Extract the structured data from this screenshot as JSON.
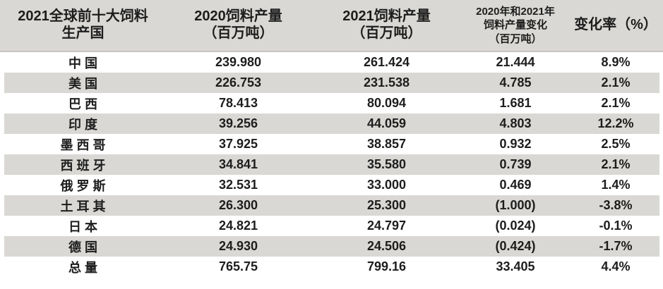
{
  "theme": {
    "background": "#ffffff",
    "header_bg": "#d9d8d4",
    "stripe_color": "#d9d8d4",
    "text_color": "#1d1d1d",
    "header_border": "#c6c5c1"
  },
  "table": {
    "columns": [
      {
        "id": "country",
        "lines": [
          "2021全球前十大饲料",
          "生产国"
        ],
        "small": false
      },
      {
        "id": "prod2020",
        "lines": [
          "2020饲料产量",
          "（百万吨）"
        ],
        "small": false
      },
      {
        "id": "prod2021",
        "lines": [
          "2021饲料产量",
          "（百万吨）"
        ],
        "small": false
      },
      {
        "id": "change",
        "lines": [
          "2020年和2021年",
          "饲料产量变化",
          "（百万吨）"
        ],
        "small": true
      },
      {
        "id": "rate",
        "lines": [
          "变化率（%）"
        ],
        "small": false
      }
    ],
    "rows": [
      {
        "country": "中 国",
        "y2020": "239.980",
        "y2021": "261.424",
        "change": "21.444",
        "rate": "8.9%"
      },
      {
        "country": "美 国",
        "y2020": "226.753",
        "y2021": "231.538",
        "change": "4.785",
        "rate": "2.1%"
      },
      {
        "country": "巴 西",
        "y2020": "78.413",
        "y2021": "80.094",
        "change": "1.681",
        "rate": "2.1%"
      },
      {
        "country": "印 度",
        "y2020": "39.256",
        "y2021": "44.059",
        "change": "4.803",
        "rate": "12.2%"
      },
      {
        "country": "墨 西 哥",
        "y2020": "37.925",
        "y2021": "38.857",
        "change": "0.932",
        "rate": "2.5%"
      },
      {
        "country": "西 班 牙",
        "y2020": "34.841",
        "y2021": "35.580",
        "change": "0.739",
        "rate": "2.1%"
      },
      {
        "country": "俄 罗 斯",
        "y2020": "32.531",
        "y2021": "33.000",
        "change": "0.469",
        "rate": "1.4%"
      },
      {
        "country": "土 耳 其",
        "y2020": "26.300",
        "y2021": "25.300",
        "change": "(1.000)",
        "rate": "-3.8%"
      },
      {
        "country": "日 本",
        "y2020": "24.821",
        "y2021": "24.797",
        "change": "(0.024)",
        "rate": "-0.1%"
      },
      {
        "country": "德 国",
        "y2020": "24.930",
        "y2021": "24.506",
        "change": "(0.424)",
        "rate": "-1.7%"
      }
    ],
    "total_row": {
      "country": "总 量",
      "y2020": "765.75",
      "y2021": "799.16",
      "change": "33.405",
      "rate": "4.4%"
    }
  },
  "chart_data": {
    "type": "table",
    "title": "2021全球前十大饲料生产国",
    "columns": [
      "2021全球前十大饲料生产国",
      "2020饲料产量（百万吨）",
      "2021饲料产量（百万吨）",
      "2020年和2021年饲料产量变化（百万吨）",
      "变化率（%）"
    ],
    "rows": [
      [
        "中国",
        239.98,
        261.424,
        21.444,
        8.9
      ],
      [
        "美国",
        226.753,
        231.538,
        4.785,
        2.1
      ],
      [
        "巴西",
        78.413,
        80.094,
        1.681,
        2.1
      ],
      [
        "印度",
        39.256,
        44.059,
        4.803,
        12.2
      ],
      [
        "墨西哥",
        37.925,
        38.857,
        0.932,
        2.5
      ],
      [
        "西班牙",
        34.841,
        35.58,
        0.739,
        2.1
      ],
      [
        "俄罗斯",
        32.531,
        33.0,
        0.469,
        1.4
      ],
      [
        "土耳其",
        26.3,
        25.3,
        -1.0,
        -3.8
      ],
      [
        "日本",
        24.821,
        24.797,
        -0.024,
        -0.1
      ],
      [
        "德国",
        24.93,
        24.506,
        -0.424,
        -1.7
      ]
    ],
    "total": [
      "总量",
      765.75,
      799.16,
      33.405,
      4.4
    ]
  }
}
